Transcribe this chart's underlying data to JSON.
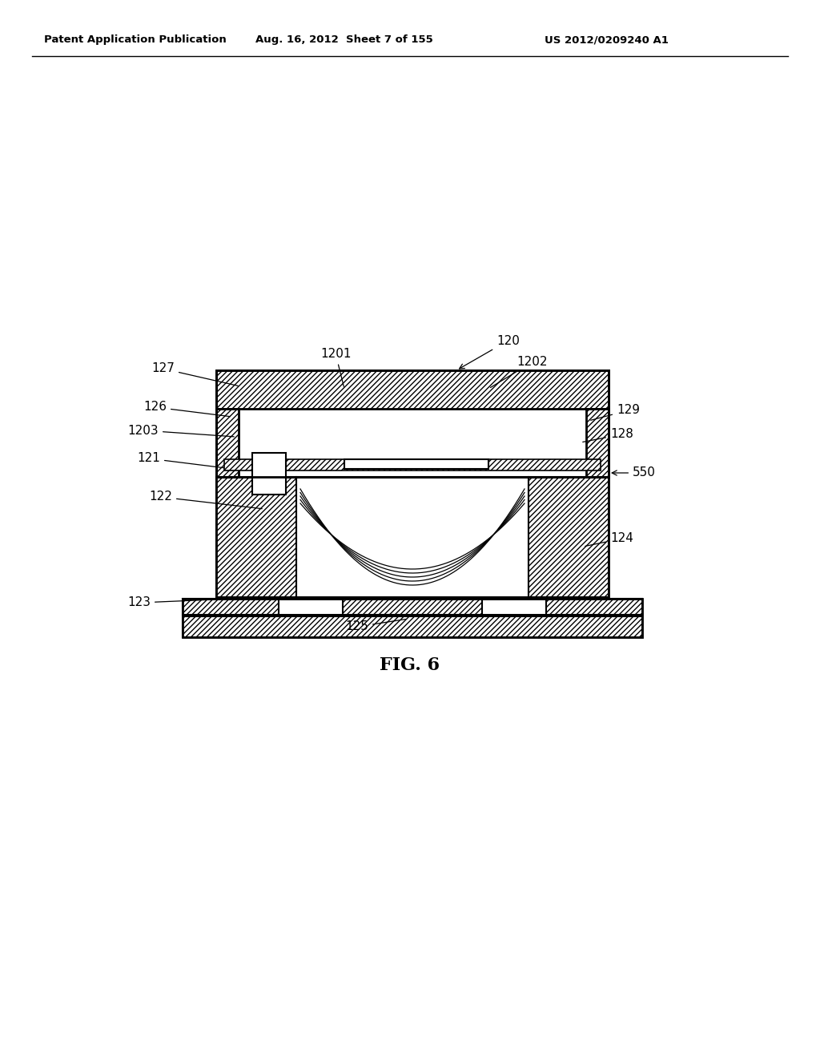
{
  "header_left": "Patent Application Publication",
  "header_mid": "Aug. 16, 2012  Sheet 7 of 155",
  "header_right": "US 2012/0209240 A1",
  "fig_label": "FIG. 6",
  "bg_color": "#ffffff",
  "line_color": "#000000"
}
